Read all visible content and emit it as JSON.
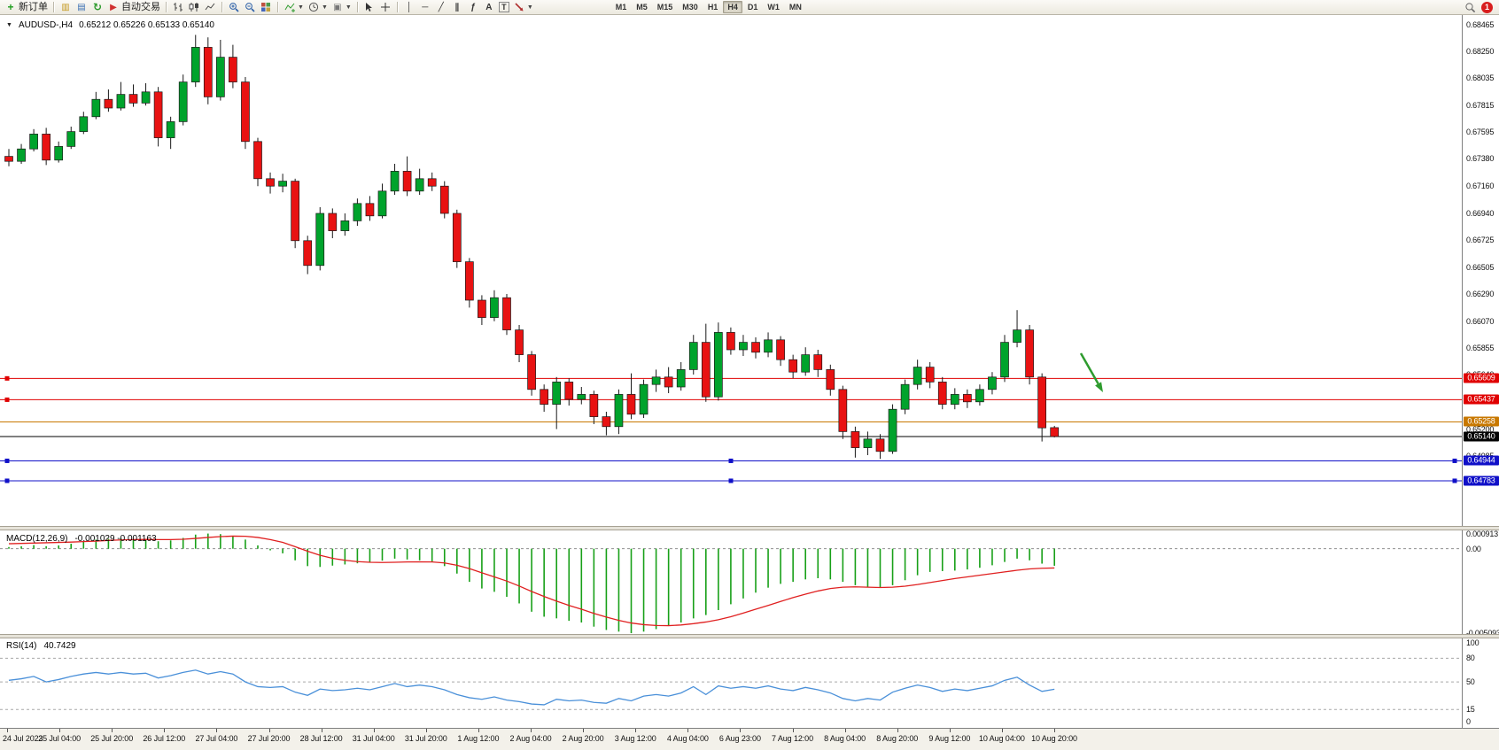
{
  "toolbar": {
    "new_order_label": "新订单",
    "autotrade_label": "自动交易",
    "text_tool": "A",
    "label_tool": "T",
    "fibo_tool": "ƒ",
    "timeframes": [
      "M1",
      "M5",
      "M15",
      "M30",
      "H1",
      "H4",
      "D1",
      "W1",
      "MN"
    ],
    "active_timeframe": "H4",
    "notification_count": "1"
  },
  "chart_header": {
    "symbol_period": "AUDUSD-,H4",
    "ohlc": "0.65212 0.65226 0.65133 0.65140"
  },
  "price_axis_labels": [
    "0.68465",
    "0.68250",
    "0.68035",
    "0.67815",
    "0.67595",
    "0.67380",
    "0.67160",
    "0.66940",
    "0.66725",
    "0.66505",
    "0.66290",
    "0.66070",
    "0.65855",
    "0.65640",
    "0.65200",
    "0.64985"
  ],
  "price_lines": [
    {
      "label": "0.65609",
      "value": 0.65609,
      "color": "#E00000",
      "handles": "left"
    },
    {
      "label": "0.65437",
      "value": 0.65437,
      "color": "#E00000",
      "handles": "left"
    },
    {
      "label": "0.65258",
      "value": 0.65258,
      "color": "#C87800",
      "handles": "none"
    },
    {
      "label": "0.65140",
      "value": 0.6514,
      "color": "#000000",
      "handles": "none"
    },
    {
      "label": "0.64944",
      "value": 0.64944,
      "color": "#1010C8",
      "handles": "full"
    },
    {
      "label": "0.64783",
      "value": 0.64783,
      "color": "#1010C8",
      "handles": "full"
    }
  ],
  "macd_panel": {
    "name": "MACD(12,26,9)",
    "values": "-0.001029 -0.001163",
    "axis": [
      {
        "label": "0.000913",
        "value": 0.000913
      },
      {
        "label": "0.00",
        "value": 0
      },
      {
        "label": "-0.005093",
        "value": -0.005093
      }
    ]
  },
  "rsi_panel": {
    "name": "RSI(14)",
    "value": "40.7429",
    "axis": [
      {
        "label": "100",
        "value": 100
      },
      {
        "label": "80",
        "value": 80
      },
      {
        "label": "50",
        "value": 50
      },
      {
        "label": "15",
        "value": 15
      },
      {
        "label": "0",
        "value": 0
      }
    ],
    "levels": [
      80,
      50,
      15
    ]
  },
  "time_axis_labels": [
    "24 Jul 2023",
    "25 Jul 04:00",
    "25 Jul 20:00",
    "26 Jul 12:00",
    "27 Jul 04:00",
    "27 Jul 20:00",
    "28 Jul 12:00",
    "31 Jul 04:00",
    "31 Jul 20:00",
    "1 Aug 12:00",
    "2 Aug 04:00",
    "2 Aug 20:00",
    "3 Aug 12:00",
    "4 Aug 04:00",
    "6 Aug 23:00",
    "7 Aug 12:00",
    "8 Aug 04:00",
    "8 Aug 20:00",
    "9 Aug 12:00",
    "10 Aug 04:00",
    "10 Aug 20:00"
  ],
  "chart_data": {
    "type": "candlestick",
    "symbol": "AUDUSD-",
    "timeframe": "H4",
    "title": "AUDUSD-,H4 0.65212 0.65226 0.65133 0.65140",
    "price_unit": 1e-05,
    "ylim": [
      0.6439,
      0.6854
    ],
    "candles": [
      [
        67400,
        67460,
        67320,
        67360
      ],
      [
        67360,
        67500,
        67340,
        67460
      ],
      [
        67460,
        67620,
        67440,
        67580
      ],
      [
        67580,
        67630,
        67330,
        67370
      ],
      [
        67370,
        67520,
        67350,
        67480
      ],
      [
        67480,
        67640,
        67460,
        67600
      ],
      [
        67600,
        67760,
        67580,
        67720
      ],
      [
        67720,
        67920,
        67700,
        67860
      ],
      [
        67860,
        67940,
        67760,
        67790
      ],
      [
        67790,
        68000,
        67770,
        67900
      ],
      [
        67900,
        67980,
        67800,
        67830
      ],
      [
        67830,
        67990,
        67810,
        67920
      ],
      [
        67920,
        67960,
        67480,
        67550
      ],
      [
        67550,
        67720,
        67460,
        67680
      ],
      [
        67680,
        68060,
        67650,
        68000
      ],
      [
        68000,
        68380,
        67960,
        68280
      ],
      [
        68280,
        68360,
        67820,
        67880
      ],
      [
        67880,
        68340,
        67850,
        68200
      ],
      [
        68200,
        68300,
        67950,
        68000
      ],
      [
        68000,
        68040,
        67460,
        67520
      ],
      [
        67520,
        67550,
        67160,
        67220
      ],
      [
        67220,
        67270,
        67100,
        67160
      ],
      [
        67160,
        67260,
        67110,
        67200
      ],
      [
        67200,
        67220,
        66660,
        66720
      ],
      [
        66720,
        66760,
        66450,
        66520
      ],
      [
        66520,
        66990,
        66480,
        66940
      ],
      [
        66940,
        66980,
        66740,
        66800
      ],
      [
        66800,
        66940,
        66760,
        66880
      ],
      [
        66880,
        67060,
        66840,
        67020
      ],
      [
        67020,
        67080,
        66880,
        66920
      ],
      [
        66920,
        67180,
        66900,
        67120
      ],
      [
        67120,
        67340,
        67090,
        67280
      ],
      [
        67280,
        67400,
        67080,
        67120
      ],
      [
        67120,
        67300,
        67090,
        67220
      ],
      [
        67220,
        67270,
        67120,
        67160
      ],
      [
        67160,
        67200,
        66900,
        66940
      ],
      [
        66940,
        66970,
        66500,
        66550
      ],
      [
        66550,
        66580,
        66180,
        66240
      ],
      [
        66240,
        66280,
        66040,
        66100
      ],
      [
        66100,
        66320,
        66070,
        66260
      ],
      [
        66260,
        66290,
        65960,
        66000
      ],
      [
        66000,
        66040,
        65740,
        65800
      ],
      [
        65800,
        65830,
        65470,
        65520
      ],
      [
        65520,
        65560,
        65340,
        65400
      ],
      [
        65400,
        65620,
        65200,
        65580
      ],
      [
        65580,
        65610,
        65390,
        65440
      ],
      [
        65440,
        65540,
        65400,
        65480
      ],
      [
        65480,
        65510,
        65240,
        65300
      ],
      [
        65300,
        65340,
        65150,
        65220
      ],
      [
        65220,
        65520,
        65160,
        65480
      ],
      [
        65480,
        65650,
        65280,
        65320
      ],
      [
        65320,
        65600,
        65290,
        65560
      ],
      [
        65560,
        65680,
        65500,
        65620
      ],
      [
        65620,
        65700,
        65490,
        65540
      ],
      [
        65540,
        65740,
        65510,
        65680
      ],
      [
        65680,
        65960,
        65640,
        65900
      ],
      [
        65900,
        66050,
        65420,
        65460
      ],
      [
        65460,
        66060,
        65430,
        65980
      ],
      [
        65980,
        66020,
        65800,
        65840
      ],
      [
        65840,
        65960,
        65790,
        65900
      ],
      [
        65900,
        65940,
        65770,
        65820
      ],
      [
        65820,
        65980,
        65780,
        65920
      ],
      [
        65920,
        65950,
        65710,
        65760
      ],
      [
        65760,
        65800,
        65610,
        65660
      ],
      [
        65660,
        65860,
        65630,
        65800
      ],
      [
        65800,
        65840,
        65620,
        65680
      ],
      [
        65680,
        65720,
        65470,
        65520
      ],
      [
        65520,
        65550,
        65120,
        65180
      ],
      [
        65180,
        65220,
        64970,
        65050
      ],
      [
        65050,
        65180,
        64990,
        65120
      ],
      [
        65120,
        65160,
        64960,
        65020
      ],
      [
        65020,
        65400,
        65000,
        65360
      ],
      [
        65360,
        65600,
        65320,
        65560
      ],
      [
        65560,
        65760,
        65520,
        65700
      ],
      [
        65700,
        65740,
        65530,
        65580
      ],
      [
        65580,
        65620,
        65360,
        65400
      ],
      [
        65400,
        65530,
        65360,
        65480
      ],
      [
        65480,
        65520,
        65370,
        65420
      ],
      [
        65420,
        65560,
        65390,
        65520
      ],
      [
        65520,
        65660,
        65480,
        65620
      ],
      [
        65620,
        65960,
        65580,
        65900
      ],
      [
        65900,
        66160,
        65860,
        66000
      ],
      [
        66000,
        66040,
        65560,
        65620
      ],
      [
        65620,
        65650,
        65100,
        65210
      ],
      [
        65212,
        65226,
        65133,
        65140
      ]
    ],
    "indicators": [
      {
        "type": "macd",
        "params": "12,26,9",
        "current_main": -0.001029,
        "current_signal": -0.001163,
        "scale": 0.001,
        "ylim": [
          -0.00525,
          0.00105
        ],
        "histogram": [
          0.1,
          0.15,
          0.22,
          0.15,
          0.2,
          0.3,
          0.42,
          0.55,
          0.6,
          0.63,
          0.58,
          0.55,
          0.45,
          0.5,
          0.65,
          0.85,
          0.913,
          0.88,
          0.78,
          0.55,
          0.2,
          -0.1,
          -0.28,
          -0.7,
          -1.05,
          -1.1,
          -1.02,
          -0.95,
          -0.88,
          -0.82,
          -0.72,
          -0.6,
          -0.65,
          -0.7,
          -0.8,
          -1.05,
          -1.5,
          -2.0,
          -2.4,
          -2.6,
          -2.9,
          -3.3,
          -3.8,
          -4.1,
          -4.2,
          -4.35,
          -4.45,
          -4.7,
          -4.9,
          -5.0,
          -5.093,
          -5.0,
          -4.85,
          -4.65,
          -4.45,
          -4.2,
          -4.0,
          -3.7,
          -3.35,
          -3.0,
          -2.65,
          -2.35,
          -2.12,
          -2.0,
          -1.85,
          -1.78,
          -1.85,
          -2.0,
          -2.2,
          -2.3,
          -2.35,
          -2.2,
          -1.9,
          -1.6,
          -1.4,
          -1.35,
          -1.32,
          -1.25,
          -1.15,
          -1.0,
          -0.8,
          -0.6,
          -0.7,
          -0.9,
          -1.029
        ],
        "signal": [
          0.3,
          0.32,
          0.34,
          0.36,
          0.38,
          0.4,
          0.43,
          0.46,
          0.5,
          0.53,
          0.55,
          0.56,
          0.55,
          0.55,
          0.57,
          0.62,
          0.68,
          0.73,
          0.76,
          0.75,
          0.68,
          0.55,
          0.38,
          0.12,
          -0.15,
          -0.4,
          -0.58,
          -0.7,
          -0.78,
          -0.82,
          -0.83,
          -0.82,
          -0.8,
          -0.79,
          -0.8,
          -0.86,
          -1.0,
          -1.2,
          -1.45,
          -1.7,
          -1.95,
          -2.25,
          -2.58,
          -2.88,
          -3.16,
          -3.42,
          -3.65,
          -3.9,
          -4.12,
          -4.32,
          -4.48,
          -4.58,
          -4.63,
          -4.64,
          -4.6,
          -4.52,
          -4.42,
          -4.28,
          -4.1,
          -3.88,
          -3.65,
          -3.42,
          -3.18,
          -2.95,
          -2.74,
          -2.55,
          -2.4,
          -2.32,
          -2.3,
          -2.32,
          -2.34,
          -2.32,
          -2.26,
          -2.16,
          -2.04,
          -1.92,
          -1.8,
          -1.7,
          -1.6,
          -1.5,
          -1.4,
          -1.3,
          -1.22,
          -1.18,
          -1.163
        ],
        "colors": {
          "histogram": "#18A018",
          "signal": "#E02020"
        }
      },
      {
        "type": "rsi",
        "params": "14",
        "current": 40.7429,
        "ylim": [
          0,
          100
        ],
        "values": [
          52,
          54,
          57,
          50,
          53,
          57,
          60,
          62,
          60,
          62,
          60,
          61,
          55,
          58,
          62,
          65,
          60,
          63,
          60,
          50,
          44,
          43,
          44,
          37,
          33,
          41,
          39,
          40,
          42,
          40,
          44,
          48,
          44,
          46,
          44,
          40,
          34,
          30,
          28,
          31,
          27,
          25,
          22,
          21,
          28,
          26,
          27,
          24,
          23,
          29,
          26,
          32,
          34,
          32,
          36,
          44,
          34,
          45,
          42,
          44,
          42,
          45,
          41,
          39,
          43,
          40,
          36,
          29,
          26,
          29,
          27,
          37,
          42,
          46,
          43,
          38,
          41,
          39,
          42,
          45,
          52,
          56,
          46,
          38,
          40.74
        ],
        "color": "#4A90D9"
      }
    ],
    "colors": {
      "bull": "#00A32C",
      "bear": "#E81212",
      "outline": "#1A1A1A",
      "arrow": "#2E9B2E"
    },
    "annotation_arrow": {
      "shape": "arrow",
      "direction": "down-right",
      "color": "#2E9B2E"
    }
  }
}
